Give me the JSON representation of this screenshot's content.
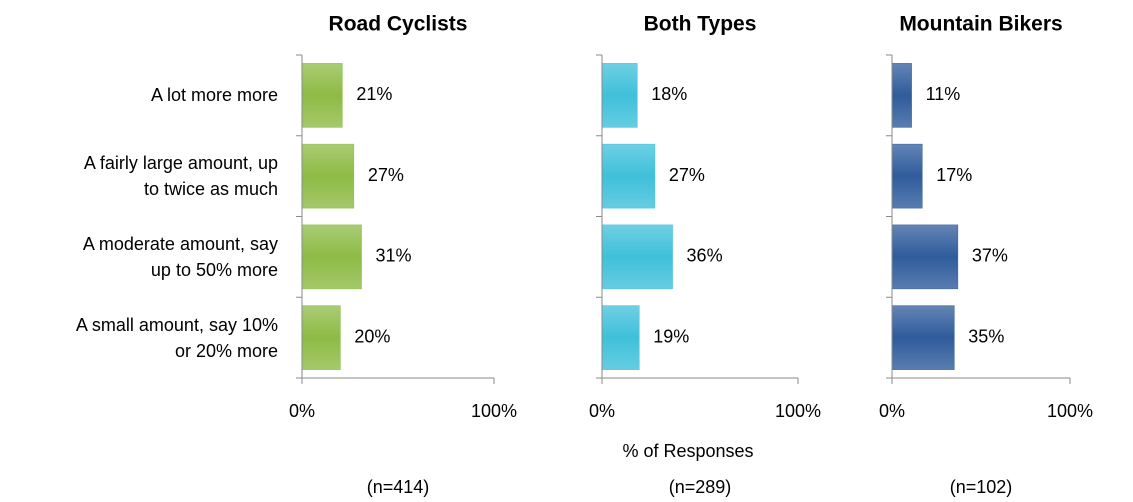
{
  "chart_data": {
    "type": "bar",
    "orientation": "horizontal",
    "categories": [
      "A lot more more",
      "A fairly large amount, up\nto twice as much",
      "A moderate amount, say\nup to 50% more",
      "A small amount, say 10%\nor 20% more"
    ],
    "xlabel": "% of Responses",
    "xlim": [
      0,
      100
    ],
    "xticks": [
      {
        "value": 0,
        "label": "0%"
      },
      {
        "value": 100,
        "label": "100%"
      }
    ],
    "series": [
      {
        "name": "Road Cyclists",
        "color": "#8dbb45",
        "values": [
          21,
          27,
          31,
          20
        ],
        "value_labels": [
          "21%",
          "27%",
          "31%",
          "20%"
        ],
        "sample": "(n=414)"
      },
      {
        "name": "Both Types",
        "color": "#3fc0da",
        "values": [
          18,
          27,
          36,
          19
        ],
        "value_labels": [
          "18%",
          "27%",
          "36%",
          "19%"
        ],
        "sample": "(n=289)"
      },
      {
        "name": "Mountain Bikers",
        "color": "#2f5c9c",
        "values": [
          11,
          17,
          37,
          35
        ],
        "value_labels": [
          "11%",
          "17%",
          "37%",
          "35%"
        ],
        "sample": "(n=102)"
      }
    ]
  }
}
